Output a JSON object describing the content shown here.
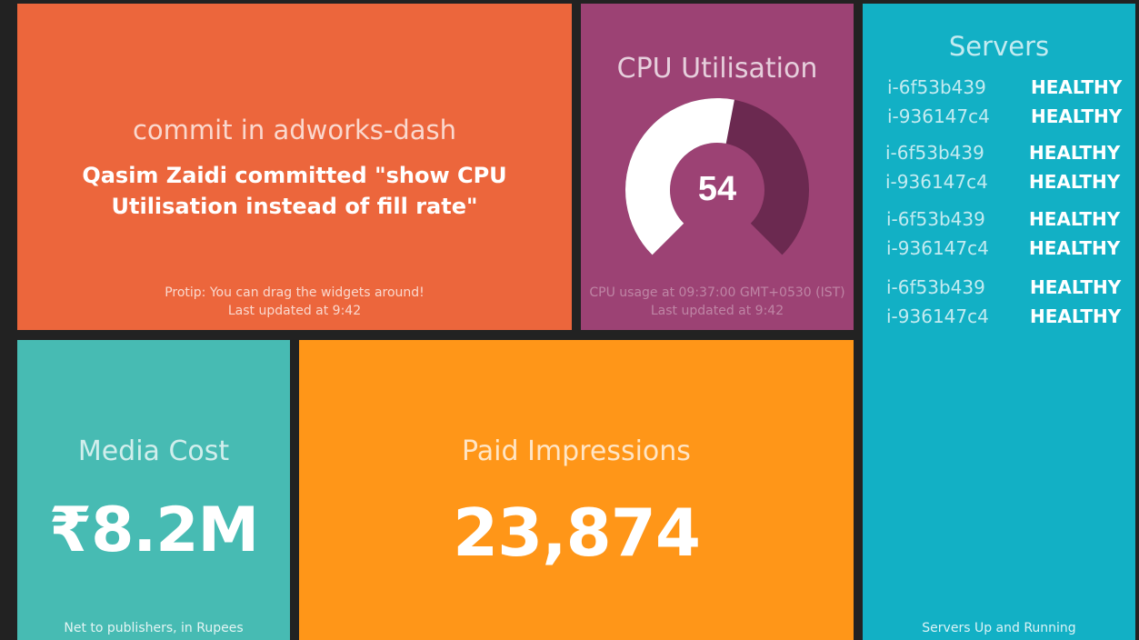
{
  "commit": {
    "title": "commit in adworks-dash",
    "message": "Qasim Zaidi committed \"show CPU Utilisation instead of fill rate\"",
    "protip": "Protip: You can drag the widgets around!",
    "updated": "Last updated at 9:42",
    "bg": "#ec663c"
  },
  "cpu": {
    "title": "CPU Utilisation",
    "value": 54,
    "value_text": "54",
    "max": 100,
    "more_info": "CPU usage at 09:37:00 GMT+0530 (IST)",
    "updated": "Last updated at 9:42",
    "bg": "#9c4274",
    "gauge_fill": "#ffffff",
    "gauge_track": "#6b2950"
  },
  "servers": {
    "title": "Servers",
    "items": [
      {
        "name": "i-6f53b439",
        "status": "HEALTHY"
      },
      {
        "name": "i-936147c4",
        "status": "HEALTHY"
      },
      {
        "name": "i-6f53b439",
        "status": "HEALTHY"
      },
      {
        "name": "i-936147c4",
        "status": "HEALTHY"
      },
      {
        "name": "i-6f53b439",
        "status": "HEALTHY"
      },
      {
        "name": "i-936147c4",
        "status": "HEALTHY"
      },
      {
        "name": "i-6f53b439",
        "status": "HEALTHY"
      },
      {
        "name": "i-936147c4",
        "status": "HEALTHY"
      }
    ],
    "footer": "Servers Up and Running",
    "bg": "#12b0c5"
  },
  "media": {
    "title": "Media Cost",
    "value": "₹8.2M",
    "footer": "Net to publishers, in Rupees",
    "bg": "#47bbb3"
  },
  "impressions": {
    "title": "Paid Impressions",
    "value": "23,874",
    "bg": "#ff9618"
  }
}
